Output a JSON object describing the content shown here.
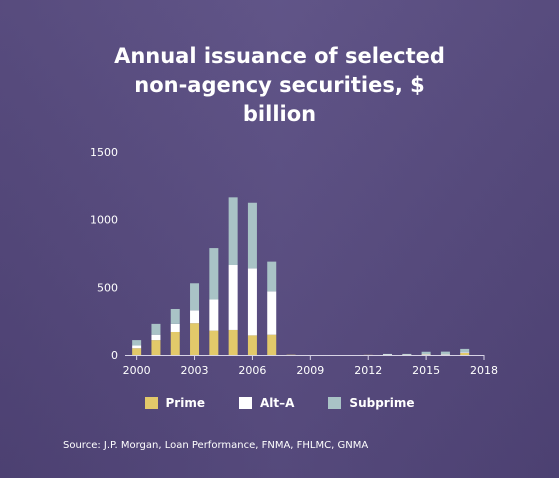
{
  "title_lines": [
    "Annual issuance of selected",
    "non-agency securities, $",
    "billion"
  ],
  "source": "Source: J.P. Morgan, Loan Performance, FNMA, FHLMC, GNMA",
  "colors": {
    "prime": "#e2c96a",
    "alt_a": "#ffffff",
    "subprime": "#a9c3c6",
    "axis": "#d8d4e6",
    "text": "#ffffff"
  },
  "chart_data": {
    "type": "bar",
    "stacked": true,
    "title": "Annual issuance of selected non-agency securities, $ billion",
    "xlabel": "",
    "ylabel": "",
    "ylim": [
      0,
      1500
    ],
    "yticks": [
      0,
      500,
      1000,
      1500
    ],
    "xticks": [
      2000,
      2003,
      2006,
      2009,
      2012,
      2015,
      2018
    ],
    "xlim": [
      1999.5,
      2018
    ],
    "grid": false,
    "legend_position": "bottom",
    "categories": [
      2000,
      2001,
      2002,
      2003,
      2004,
      2005,
      2006,
      2007,
      2008,
      2009,
      2010,
      2011,
      2012,
      2013,
      2014,
      2015,
      2016,
      2017
    ],
    "series": [
      {
        "name": "Prime",
        "values": [
          50,
          110,
          170,
          235,
          180,
          185,
          145,
          150,
          2,
          0,
          0,
          0,
          1,
          3,
          2,
          4,
          3,
          15
        ]
      },
      {
        "name": "Alt–A",
        "values": [
          20,
          40,
          60,
          95,
          230,
          480,
          495,
          320,
          0,
          0,
          0,
          0,
          0,
          1,
          1,
          2,
          2,
          5
        ]
      },
      {
        "name": "Subprime",
        "values": [
          40,
          80,
          110,
          200,
          380,
          500,
          485,
          220,
          0,
          0,
          0,
          0,
          0,
          4,
          5,
          18,
          20,
          25
        ]
      }
    ]
  }
}
